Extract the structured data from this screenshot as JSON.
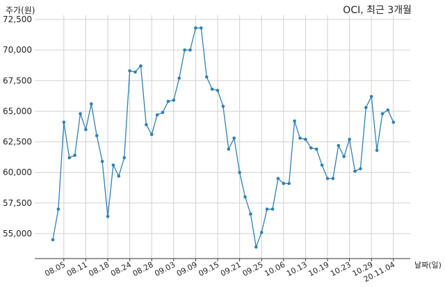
{
  "chart_data": {
    "type": "line",
    "title": "OCI, 최근 3개월",
    "ylabel": "주가(원)",
    "xlabel": "날짜(일)",
    "ylim": [
      53000,
      72600
    ],
    "yticks": [
      55000,
      57500,
      60000,
      62500,
      65000,
      67500,
      70000,
      72500
    ],
    "ytick_labels": [
      "55,000",
      "57,500",
      "60,000",
      "62,500",
      "65,000",
      "67,500",
      "70,000",
      "72,500"
    ],
    "xtick_labels": [
      "08.05",
      "08.11",
      "08.18",
      "08.24",
      "08.28",
      "09.03",
      "09.09",
      "09.15",
      "09.21",
      "09.25",
      "10.06",
      "10.13",
      "10.19",
      "10.23",
      "10.29",
      "20.11.04"
    ],
    "xtick_index": [
      2,
      6,
      10,
      14,
      18,
      22,
      26,
      30,
      34,
      38,
      42,
      46,
      50,
      54,
      58,
      62
    ],
    "grid": true,
    "color": "#2f7fb2",
    "series": [
      {
        "values": [
          54500,
          57000,
          64100,
          61200,
          61400,
          64800,
          63500,
          65600,
          63000,
          60900,
          56400,
          60600,
          59700,
          61200,
          68300,
          68200,
          68700,
          63900,
          63100,
          64700,
          64900,
          65800,
          65900,
          67700,
          70000,
          70000,
          71800,
          71800,
          67800,
          66800,
          66700,
          65400,
          61900,
          62800,
          60000,
          58000,
          56600,
          53900,
          55100,
          57000,
          57000,
          59500,
          59100,
          59100,
          64200,
          62800,
          62700,
          62000,
          61900,
          60600,
          59500,
          59500,
          62200,
          61300,
          62700,
          60100,
          60300,
          65300,
          66200,
          61800,
          64800,
          65100,
          64100
        ]
      }
    ]
  }
}
